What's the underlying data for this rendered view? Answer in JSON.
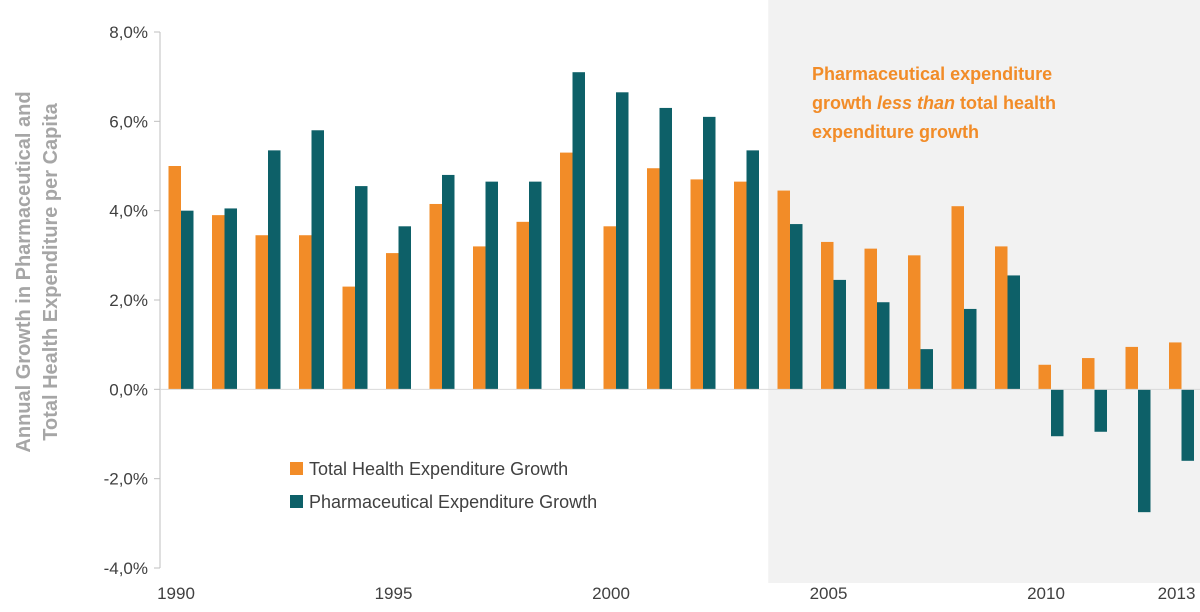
{
  "chart_data": {
    "type": "bar",
    "title": "",
    "xlabel": "",
    "ylabel_lines": [
      "Annual Growth in Pharmaceutical and",
      "Total Health Expenditure per Capita"
    ],
    "categories": [
      1990,
      1991,
      1992,
      1993,
      1994,
      1995,
      1996,
      1997,
      1998,
      1999,
      2000,
      2001,
      2002,
      2003,
      2004,
      2005,
      2006,
      2007,
      2008,
      2009,
      2010,
      2011,
      2012,
      2013
    ],
    "x_tick_labels": [
      "1990",
      "1995",
      "2000",
      "2005",
      "2010",
      "2013"
    ],
    "x_tick_values": [
      1990,
      1995,
      2000,
      2005,
      2010,
      2013
    ],
    "y_tick_labels": [
      "8,0%",
      "6,0%",
      "4,0%",
      "2,0%",
      "0,0%",
      "-2,0%",
      "-4,0%"
    ],
    "y_tick_values": [
      8,
      6,
      4,
      2,
      0,
      -2,
      -4
    ],
    "ylim": [
      -4,
      8
    ],
    "grid": false,
    "legend_position": "lower-left inside plot",
    "series": [
      {
        "name": "Total Health Expenditure Growth",
        "color": "#f28c28",
        "values": [
          5.0,
          3.9,
          3.45,
          3.45,
          2.3,
          3.05,
          4.15,
          3.2,
          3.75,
          5.3,
          3.65,
          4.95,
          4.7,
          4.65,
          4.45,
          3.3,
          3.15,
          3.0,
          4.1,
          3.2,
          0.55,
          0.7,
          0.95,
          1.05
        ]
      },
      {
        "name": "Pharmaceutical Expenditure Growth",
        "color": "#0d6068",
        "values": [
          4.0,
          4.05,
          5.35,
          5.8,
          4.55,
          3.65,
          4.8,
          4.65,
          4.65,
          7.1,
          6.65,
          6.3,
          6.1,
          5.35,
          3.7,
          2.45,
          1.95,
          0.9,
          1.8,
          2.55,
          -1.05,
          -0.95,
          -2.75,
          -1.6
        ]
      }
    ],
    "shaded_region": {
      "from": 2003.5,
      "to": 2013.5,
      "color": "#f2f2f2"
    },
    "annotation": {
      "lines": [
        "Pharmaceutical expenditure",
        "growth |less than| total health",
        "expenditure growth"
      ],
      "color": "#f28c28"
    }
  }
}
